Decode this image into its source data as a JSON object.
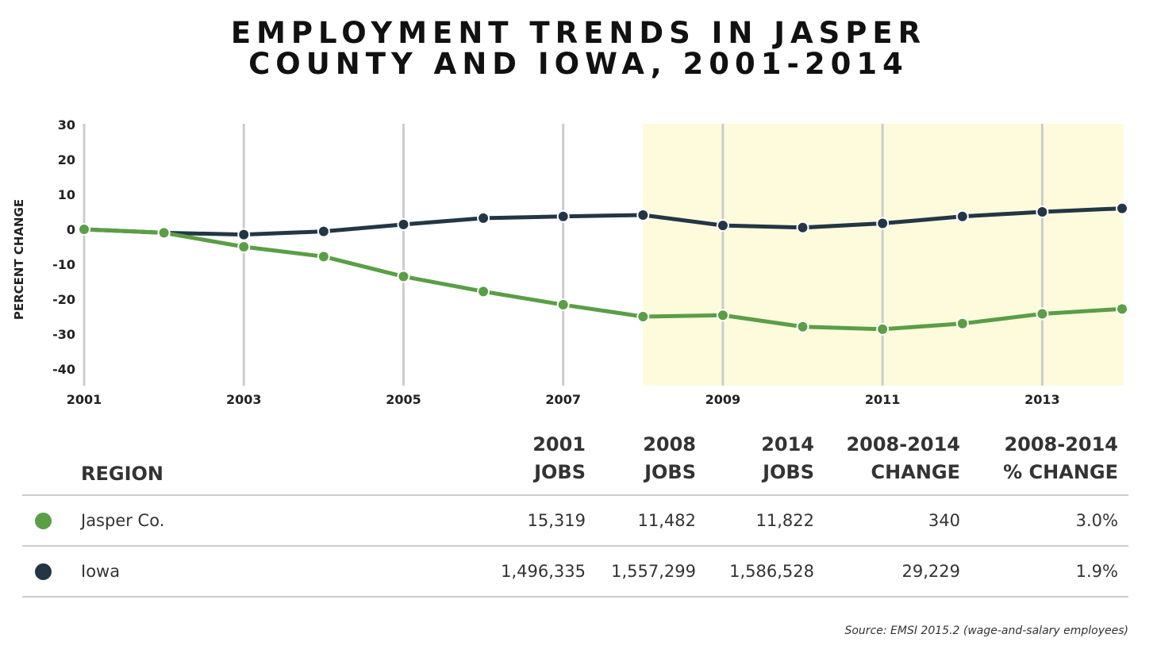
{
  "title_line1": "EMPLOYMENT TRENDS IN JASPER",
  "title_line2": "COUNTY AND IOWA, 2001-2014",
  "colors": {
    "jasper": "#5a9e46",
    "iowa": "#233646",
    "highlight": "#fdfbdc",
    "grid": "#cccccc"
  },
  "chart_data": {
    "type": "line",
    "title": "EMPLOYMENT TRENDS IN JASPER COUNTY AND IOWA, 2001-2014",
    "ylabel": "PERCENT CHANGE",
    "xlabel": "",
    "x": [
      2001,
      2002,
      2003,
      2004,
      2005,
      2006,
      2007,
      2008,
      2009,
      2010,
      2011,
      2012,
      2013,
      2014
    ],
    "xlim": [
      2001,
      2014
    ],
    "ylim": [
      -45,
      30
    ],
    "x_ticks": [
      "2001",
      "2003",
      "2005",
      "2007",
      "2009",
      "2011",
      "2013"
    ],
    "y_ticks": [
      30,
      20,
      10,
      0,
      -10,
      -20,
      -30,
      -40
    ],
    "highlight_range": [
      2008,
      2014
    ],
    "grid": "vertical",
    "series": [
      {
        "name": "Iowa",
        "color": "#233646",
        "values": [
          0,
          -1.0,
          -1.5,
          -0.6,
          1.4,
          3.2,
          3.7,
          4.1,
          1.1,
          0.5,
          1.7,
          3.7,
          5.0,
          6.0
        ]
      },
      {
        "name": "Jasper Co.",
        "color": "#5a9e46",
        "values": [
          0,
          -1.0,
          -5.0,
          -7.8,
          -13.5,
          -17.8,
          -21.6,
          -25.0,
          -24.6,
          -27.9,
          -28.6,
          -27.0,
          -24.2,
          -22.8
        ]
      }
    ]
  },
  "table": {
    "headers": {
      "region": "REGION",
      "jobs2001_l1": "2001",
      "jobs2001_l2": "JOBS",
      "jobs2008_l1": "2008",
      "jobs2008_l2": "JOBS",
      "jobs2014_l1": "2014",
      "jobs2014_l2": "JOBS",
      "change_l1": "2008-2014",
      "change_l2": "CHANGE",
      "pct_l1": "2008-2014",
      "pct_l2": "% CHANGE"
    },
    "rows": [
      {
        "region": "Jasper Co.",
        "jobs2001": "15,319",
        "jobs2008": "11,482",
        "jobs2014": "11,822",
        "change": "340",
        "pct": "3.0%"
      },
      {
        "region": "Iowa",
        "jobs2001": "1,496,335",
        "jobs2008": "1,557,299",
        "jobs2014": "1,586,528",
        "change": "29,229",
        "pct": "1.9%"
      }
    ]
  },
  "source": "Source: EMSI  2015.2 (wage-and-salary employees)"
}
